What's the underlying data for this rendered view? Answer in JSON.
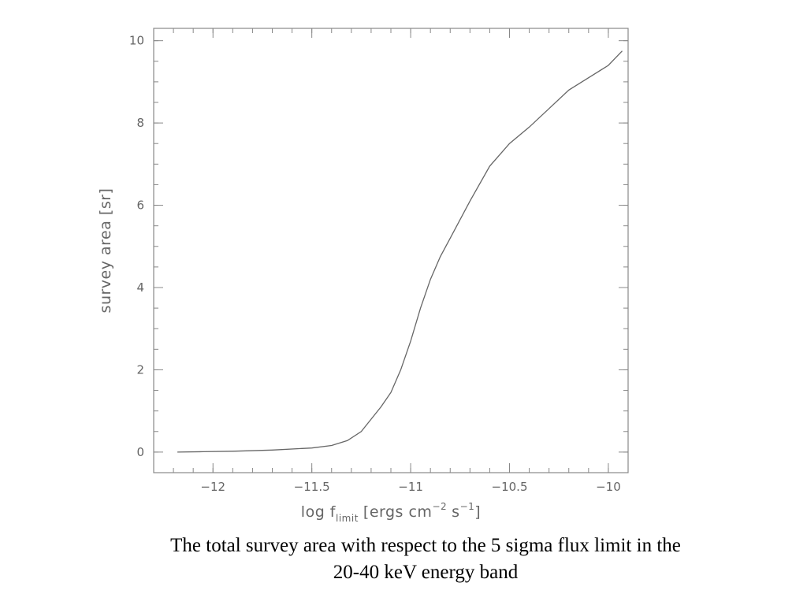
{
  "chart_data": {
    "type": "line",
    "xlabel": {
      "prefix": "log f",
      "subscript": "limit",
      "units_open": "[ergs cm",
      "cm_exponent": "−2",
      "s_text": "s",
      "s_exponent": "−1",
      "units_close": "]"
    },
    "ylabel": "survey area [sr]",
    "xlim": [
      -12.3,
      -9.9
    ],
    "ylim": [
      -0.5,
      10.3
    ],
    "x_ticks": [
      {
        "value": -12,
        "label": "−12"
      },
      {
        "value": -11.5,
        "label": "−11.5"
      },
      {
        "value": -11,
        "label": "−11"
      },
      {
        "value": -10.5,
        "label": "−10.5"
      },
      {
        "value": -10,
        "label": "−10"
      }
    ],
    "y_ticks": [
      {
        "value": 0,
        "label": "0"
      },
      {
        "value": 2,
        "label": "2"
      },
      {
        "value": 4,
        "label": "4"
      },
      {
        "value": 6,
        "label": "6"
      },
      {
        "value": 8,
        "label": "8"
      },
      {
        "value": 10,
        "label": "10"
      }
    ],
    "x_minor_step": 0.1,
    "y_minor_step": 0.5,
    "grid": false,
    "series": [
      {
        "color": "#666666",
        "points": [
          [
            -12.18,
            0.0
          ],
          [
            -12.05,
            0.01
          ],
          [
            -11.9,
            0.02
          ],
          [
            -11.7,
            0.05
          ],
          [
            -11.5,
            0.1
          ],
          [
            -11.4,
            0.16
          ],
          [
            -11.32,
            0.28
          ],
          [
            -11.25,
            0.5
          ],
          [
            -11.2,
            0.8
          ],
          [
            -11.15,
            1.1
          ],
          [
            -11.1,
            1.45
          ],
          [
            -11.05,
            2.0
          ],
          [
            -11.0,
            2.7
          ],
          [
            -10.95,
            3.5
          ],
          [
            -10.9,
            4.2
          ],
          [
            -10.85,
            4.75
          ],
          [
            -10.8,
            5.2
          ],
          [
            -10.75,
            5.65
          ],
          [
            -10.7,
            6.1
          ],
          [
            -10.6,
            6.95
          ],
          [
            -10.5,
            7.5
          ],
          [
            -10.4,
            7.9
          ],
          [
            -10.3,
            8.35
          ],
          [
            -10.2,
            8.8
          ],
          [
            -10.1,
            9.1
          ],
          [
            -10.0,
            9.4
          ],
          [
            -9.93,
            9.75
          ]
        ]
      }
    ]
  },
  "caption": {
    "line1": "The total survey area with respect to the 5 sigma flux limit in the",
    "line2": "20-40 keV energy band"
  }
}
